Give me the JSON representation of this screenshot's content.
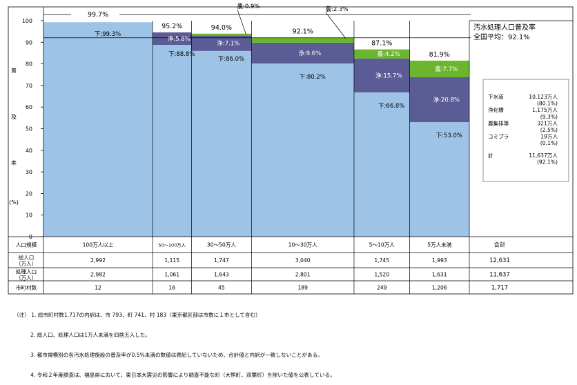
{
  "ylabel": [
    "普",
    "及",
    "率",
    "(%)"
  ],
  "colors": {
    "sewer": "#9dc3e6",
    "joka": "#5b5b95",
    "agri": "#6bb62e",
    "grid": "#000000"
  },
  "chart_data": {
    "type": "bar",
    "stacked": true,
    "variable_width": true,
    "ylim": [
      0,
      100
    ],
    "yticks": [
      0,
      10,
      20,
      30,
      40,
      50,
      60,
      70,
      80,
      90,
      100
    ],
    "categories": [
      "100万人以上",
      "50～100万人",
      "30～50万人",
      "10～30万人",
      "5～10万人",
      "5万人未満"
    ],
    "widths_population": [
      2982,
      1061,
      1643,
      2801,
      1520,
      1631
    ],
    "series": [
      {
        "key": "sewer",
        "values": [
          99.3,
          88.8,
          86.0,
          80.2,
          66.8,
          53.0
        ],
        "labels": [
          "下:99.3%",
          "下:88.8%",
          "下:86.0%",
          "下:80.2%",
          "下:66.8%",
          "下:53.0%"
        ]
      },
      {
        "key": "joka",
        "values": [
          0,
          5.8,
          7.1,
          9.6,
          15.7,
          20.8
        ],
        "labels": [
          "",
          "浄:5.8%",
          "浄:7.1%",
          "浄:9.6%",
          "浄:15.7%",
          "浄:20.8%"
        ]
      },
      {
        "key": "agri",
        "values": [
          0,
          0,
          0.9,
          2.3,
          4.2,
          7.7
        ],
        "labels": [
          "",
          "",
          "",
          "",
          "農:4.2%",
          "農:7.7%"
        ]
      }
    ],
    "totals": [
      "99.7%",
      "95.2%",
      "94.0%",
      "92.1%",
      "87.1%",
      "81.9%"
    ],
    "callouts": [
      {
        "text": "農:0.9%",
        "bar": 2
      },
      {
        "text": "農:2.3%",
        "bar": 3
      }
    ],
    "average_line": 92.1
  },
  "average_box": {
    "title": "汚水処理人口普及率",
    "avg": "全国平均：92.1%"
  },
  "breakdown": [
    {
      "label": "下水道",
      "value": "10,123万人"
    },
    {
      "label": "",
      "value": "(80.1%)"
    },
    {
      "label": "浄化槽",
      "value": "1,175万人"
    },
    {
      "label": "",
      "value": "(9.3%)"
    },
    {
      "label": "農集排等",
      "value": "321万人"
    },
    {
      "label": "",
      "value": "(2.5%)"
    },
    {
      "label": "コミプラ",
      "value": "19万人"
    },
    {
      "label": "",
      "value": "(0.1%)"
    },
    {
      "label": "計",
      "value": "11,637万人"
    },
    {
      "label": "",
      "value": "(92.1%)"
    }
  ],
  "table": {
    "rows": [
      {
        "header": "人口規模",
        "cells": [
          "100万人以上",
          "50～100万人",
          "30～50万人",
          "10～30万人",
          "5～10万人",
          "5万人未満"
        ],
        "total": "合計"
      },
      {
        "header": "総人口\n（万人）",
        "cells": [
          "2,992",
          "1,115",
          "1,747",
          "3,040",
          "1,745",
          "1,993"
        ],
        "total": "12,631"
      },
      {
        "header": "処理人口\n（万人）",
        "cells": [
          "2,982",
          "1,061",
          "1,643",
          "2,801",
          "1,520",
          "1,631"
        ],
        "total": "11,637"
      },
      {
        "header": "市町村数",
        "cells": [
          "12",
          "16",
          "45",
          "189",
          "249",
          "1,206"
        ],
        "total": "1,717"
      }
    ]
  },
  "notes": [
    "（注） 1. 総市町村数1,717の内訳は、市 793、町 741、村 183（東京都区部は市数に１市として含む）",
    "          2. 総人口、処理人口は1万人未満を四捨五入した。",
    "          3. 都市規模別の各汚水処理施設の普及率が0.5%未満の数値は表記していないため、合計値と内訳が一致しないことがある。",
    "          4. 令和２年度調査は、福島県において、東日本大震災の影響により調査不能な町（大熊町、双葉町）を除いた値を公表している。"
  ]
}
